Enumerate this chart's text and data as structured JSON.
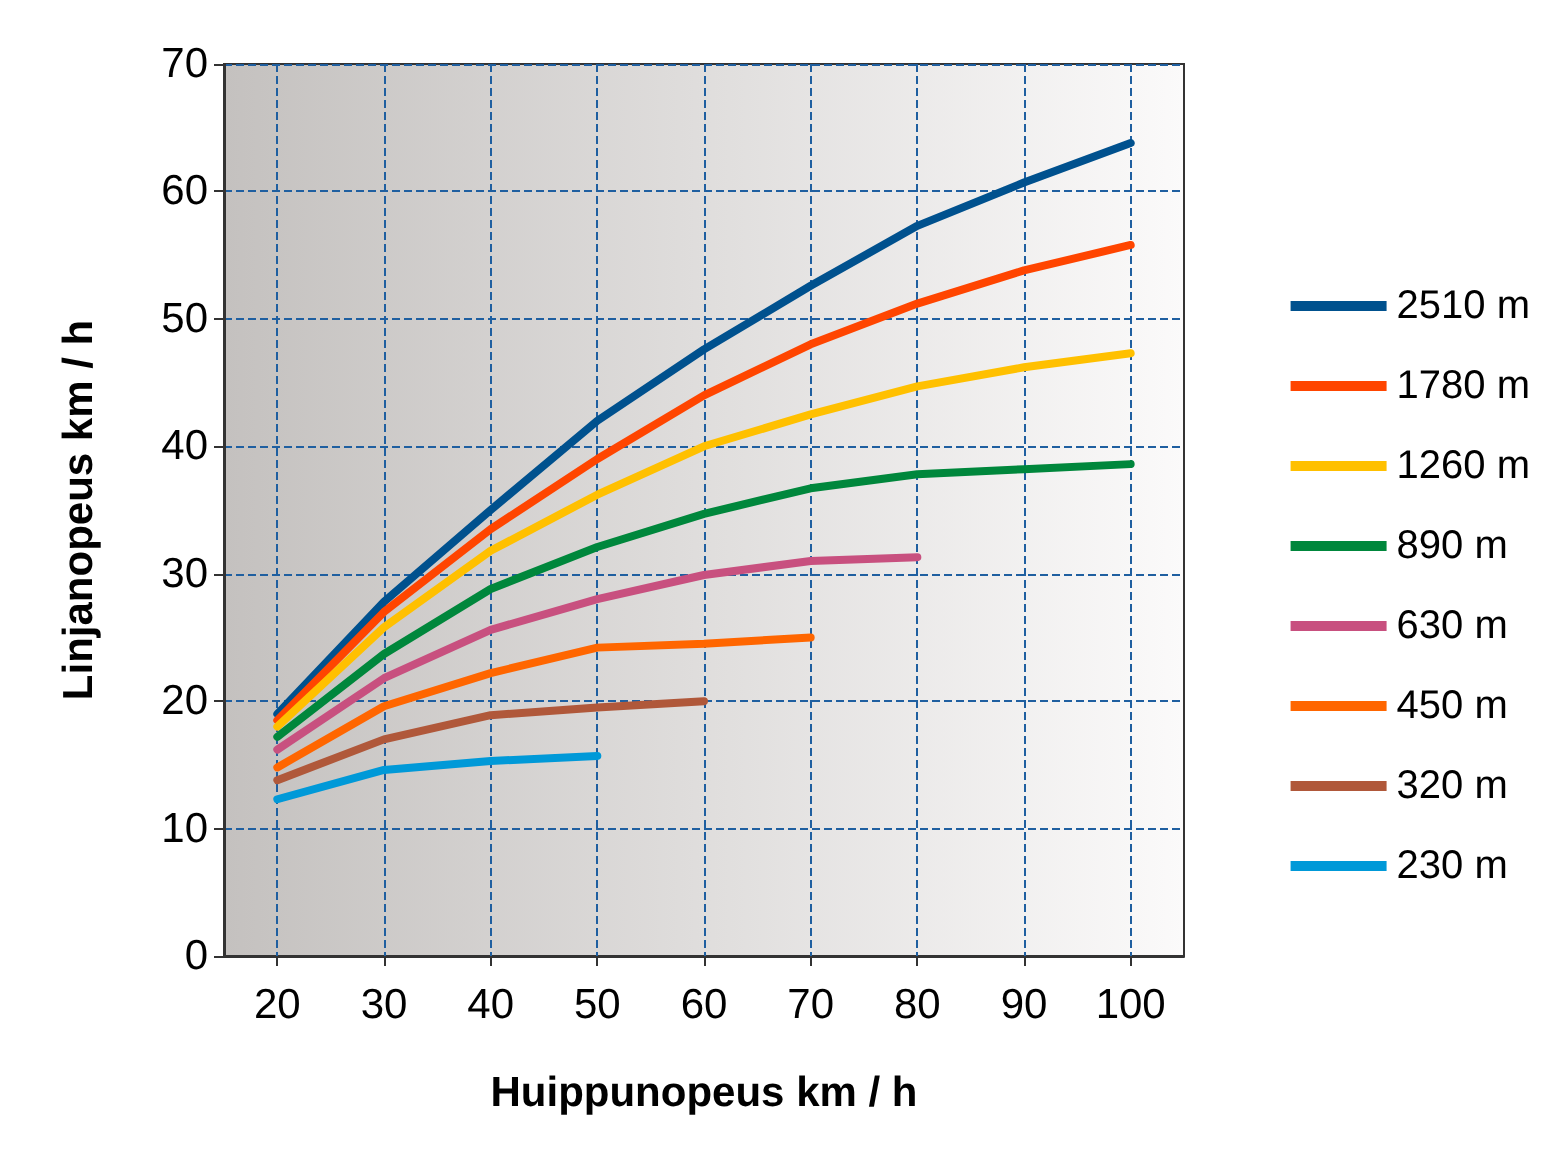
{
  "chart_data": {
    "type": "line",
    "xlabel": "Huippunopeus km / h",
    "ylabel": "Linjanopeus km / h",
    "x": [
      20,
      30,
      40,
      50,
      60,
      70,
      80,
      90,
      100
    ],
    "series": [
      {
        "name": "2510 m",
        "color": "#00518e",
        "values": [
          19,
          27.8,
          35,
          42,
          47.6,
          52.6,
          57.3,
          60.7,
          63.8
        ]
      },
      {
        "name": "1780 m",
        "color": "#ff4500",
        "values": [
          18.5,
          27,
          33.5,
          39,
          44,
          48,
          51.2,
          53.8,
          55.8
        ]
      },
      {
        "name": "1260 m",
        "color": "#ffc000",
        "values": [
          18,
          25.8,
          31.8,
          36.2,
          40,
          42.5,
          44.7,
          46.2,
          47.3
        ]
      },
      {
        "name": "890 m",
        "color": "#00873c",
        "values": [
          17.2,
          23.7,
          28.8,
          32.1,
          34.7,
          36.7,
          37.8,
          38.2,
          38.6
        ]
      },
      {
        "name": "630 m",
        "color": "#c8507f",
        "values": [
          16.2,
          21.8,
          25.6,
          28,
          29.9,
          31,
          31.3,
          null,
          null
        ]
      },
      {
        "name": "450 m",
        "color": "#ff6600",
        "values": [
          14.8,
          19.6,
          22.2,
          24.2,
          24.5,
          25,
          null,
          null,
          null
        ]
      },
      {
        "name": "320 m",
        "color": "#b0583a",
        "values": [
          13.8,
          17,
          18.9,
          19.5,
          20,
          null,
          null,
          null,
          null
        ]
      },
      {
        "name": "230 m",
        "color": "#0099d8",
        "values": [
          12.3,
          14.6,
          15.3,
          15.7,
          null,
          null,
          null,
          null,
          null
        ]
      }
    ],
    "xlim": [
      15,
      105
    ],
    "xticks": [
      20,
      30,
      40,
      50,
      60,
      70,
      80,
      90,
      100
    ],
    "ylim": [
      0,
      70
    ],
    "yticks": [
      0,
      10,
      20,
      30,
      40,
      50,
      60,
      70
    ],
    "grid": true,
    "legend": "right",
    "marker": "none",
    "line_style": "solid"
  }
}
